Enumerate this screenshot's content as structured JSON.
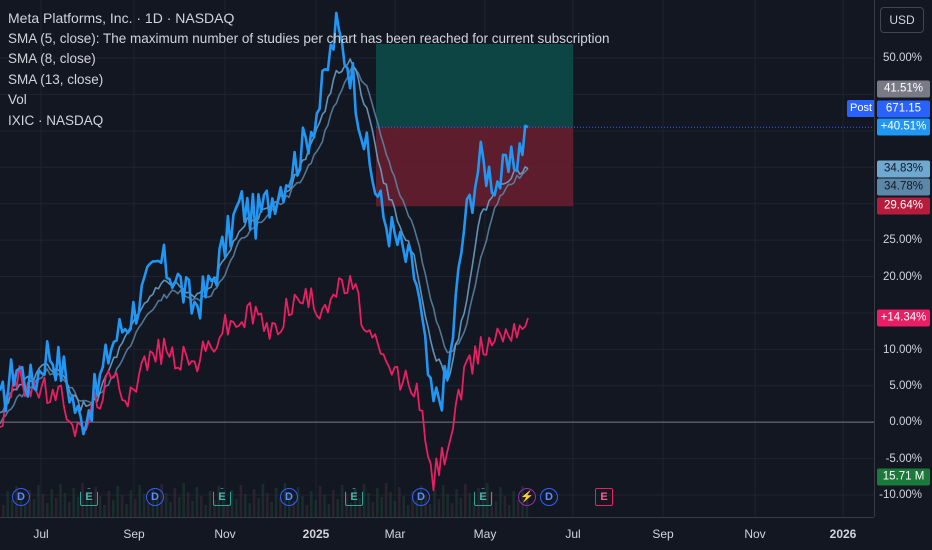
{
  "legend": {
    "title": "Meta Platforms, Inc. · 1D · NASDAQ",
    "sma5": "SMA (5, close): The maximum number of studies per chart has been reached for current subscription",
    "sma8": "SMA (8, close)",
    "sma13": "SMA (13, close)",
    "vol": "Vol",
    "ixic": "IXIC · NASDAQ"
  },
  "currency": "USD",
  "post_label": "Post",
  "price_axis_ticks": [
    "50.00%",
    "25.00%",
    "20.00%",
    "10.00%",
    "5.00%",
    "0.00%",
    "-5.00%",
    "-10.00%"
  ],
  "price_tags": {
    "t1": "41.51%",
    "price": "671.15",
    "t3": "+40.51%",
    "t4": "34.83%",
    "t5": "34.78%",
    "t6": "29.64%",
    "t7": "+14.34%",
    "t8": "15.71 M"
  },
  "time_axis": [
    "Jul",
    "Sep",
    "Nov",
    "2025",
    "Mar",
    "May",
    "Jul",
    "Sep",
    "Nov",
    "2026"
  ],
  "markers": [
    "D",
    "E",
    "D",
    "E",
    "D",
    "E",
    "D",
    "E",
    "D",
    "E"
  ],
  "colors": {
    "meta": "#2196f3",
    "sma8": "#6fa8d0",
    "sma13": "#5d87a8",
    "ixic": "#e91e63",
    "position_profit": "#0d4d4a",
    "position_loss": "#6b1f2e"
  },
  "chart_data": {
    "type": "line",
    "ylabel": "",
    "ylim": [
      -10,
      55
    ],
    "x_labels": [
      "Jul",
      "Sep",
      "Nov",
      "2025",
      "Mar",
      "May"
    ],
    "series": [
      {
        "name": "Meta Platforms, Inc.",
        "values": [
          2,
          8,
          5,
          10,
          7,
          0,
          4,
          11,
          14,
          18,
          22,
          20,
          16,
          18,
          24,
          30,
          28,
          31,
          34,
          38,
          44,
          54,
          48,
          36,
          28,
          24,
          20,
          2,
          6,
          27,
          36,
          33,
          35,
          40.5
        ]
      },
      {
        "name": "IXIC · NASDAQ",
        "values": [
          0,
          6,
          5,
          4,
          3,
          -2,
          3,
          6,
          4,
          8,
          10,
          9,
          8,
          10,
          13,
          14,
          15,
          12,
          16,
          17,
          16,
          18,
          19,
          12,
          8,
          6,
          5,
          -8,
          -3,
          6,
          10,
          12,
          13,
          14.3
        ]
      },
      {
        "name": "SMA (8, close)",
        "values": [
          1,
          5,
          6,
          8,
          6,
          2,
          3,
          8,
          12,
          16,
          19,
          19,
          17,
          18,
          22,
          27,
          28,
          30,
          32,
          36,
          41,
          48,
          50,
          42,
          33,
          27,
          22,
          10,
          6,
          15,
          28,
          32,
          34,
          34.8
        ]
      },
      {
        "name": "SMA (13, close)",
        "values": [
          0,
          3,
          5,
          7,
          6,
          3,
          3,
          6,
          10,
          14,
          17,
          18,
          17,
          17,
          20,
          25,
          27,
          29,
          31,
          34,
          38,
          44,
          49,
          46,
          38,
          31,
          26,
          16,
          9,
          12,
          22,
          30,
          33,
          34.8
        ]
      }
    ]
  }
}
